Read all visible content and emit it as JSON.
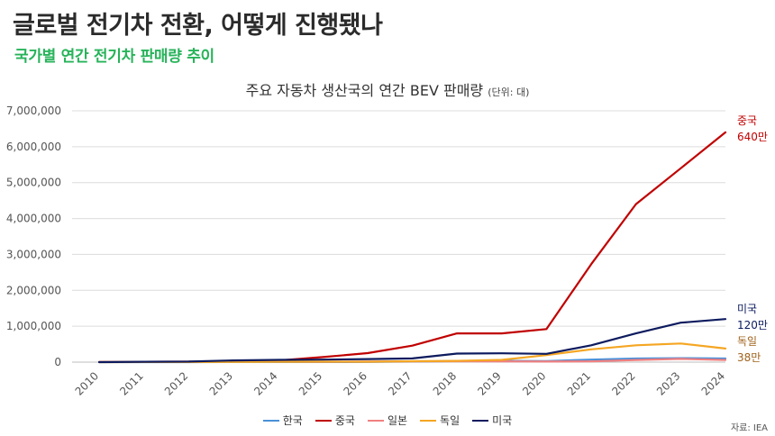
{
  "header": {
    "headline": "글로벌 전기차 전환, 어떻게 진행됐나",
    "subhead": "국가별 연간 전기차 판매량 추이"
  },
  "source": "자료: IEA",
  "chart_data": {
    "type": "line",
    "title": "주요 자동차 생산국의 연간 BEV 판매량",
    "unit_note": "(단위: 대)",
    "xlabel": "",
    "ylabel": "",
    "x": [
      "2010",
      "2011",
      "2012",
      "2013",
      "2014",
      "2015",
      "2016",
      "2017",
      "2018",
      "2019",
      "2020",
      "2021",
      "2022",
      "2023",
      "2024"
    ],
    "ylim": [
      0,
      7000000
    ],
    "yticks": [
      0,
      1000000,
      2000000,
      3000000,
      4000000,
      5000000,
      6000000,
      7000000
    ],
    "ytick_labels": [
      "0",
      "1,000,000",
      "2,000,000",
      "3,000,000",
      "4,000,000",
      "5,000,000",
      "6,000,000",
      "7,000,000"
    ],
    "grid": true,
    "legend_position": "bottom",
    "series": [
      {
        "name": "한국",
        "color": "#4a90d9",
        "values": [
          0,
          0,
          1000,
          2000,
          3000,
          3000,
          5000,
          14000,
          30000,
          35000,
          31000,
          71000,
          100000,
          110000,
          100000
        ]
      },
      {
        "name": "중국",
        "color": "#c00000",
        "values": [
          2000,
          5000,
          10000,
          20000,
          45000,
          140000,
          250000,
          460000,
          800000,
          800000,
          920000,
          2730000,
          4400000,
          5400000,
          6400000
        ]
      },
      {
        "name": "일본",
        "color": "#f08080",
        "values": [
          2000,
          10000,
          15000,
          15000,
          16000,
          11000,
          15000,
          20000,
          25000,
          20000,
          15000,
          20000,
          60000,
          90000,
          60000
        ]
      },
      {
        "name": "독일",
        "color": "#f5a623",
        "values": [
          0,
          2000,
          3000,
          6000,
          8000,
          12000,
          11000,
          25000,
          36000,
          63000,
          195000,
          356000,
          470000,
          520000,
          380000
        ]
      },
      {
        "name": "미국",
        "color": "#0d1b5e",
        "values": [
          1000,
          10000,
          15000,
          48000,
          63000,
          71000,
          86000,
          104000,
          238000,
          245000,
          231000,
          470000,
          800000,
          1100000,
          1200000
        ]
      }
    ],
    "annotations": [
      {
        "series": "중국",
        "line1": "중국",
        "line2": "640만",
        "color": "#c00000"
      },
      {
        "series": "미국",
        "line1": "미국",
        "line2": "120만",
        "color": "#0d1b5e"
      },
      {
        "series": "독일",
        "line1": "독일",
        "line2": "38만",
        "color": "#a0621b"
      }
    ]
  }
}
